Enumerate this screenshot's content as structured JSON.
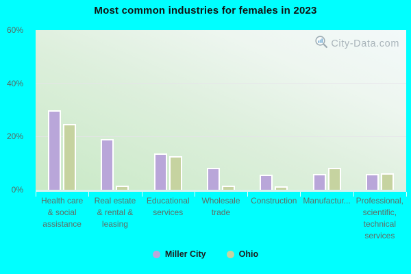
{
  "watermark": {
    "text": "City-Data.com"
  },
  "colors": {
    "background": "#00ffff",
    "plot_gradient_bottom_left": "#c9e9c6",
    "plot_gradient_top_right": "#f3f9fa",
    "axis_line": "#d6f3ee",
    "gridline": "#e6e2ea",
    "title_text": "#111111",
    "axis_text": "#5e6d66",
    "watermark_text": "#a9b4ba"
  },
  "chart_data": {
    "type": "bar",
    "title": "Most common industries for females in 2023",
    "categories": [
      "Health care & social assistance",
      "Real estate & rental & leasing",
      "Educational services",
      "Wholesale trade",
      "Construction",
      "Manufactur...",
      "Professional, scientific, technical services"
    ],
    "tick_labels": [
      "Health care\n& social\nassistance",
      "Real estate\n& rental &\nleasing",
      "Educational\nservices",
      "Wholesale\ntrade",
      "Construction",
      "Manufactur...",
      "Professional,\nscientific,\ntechnical\nservices"
    ],
    "series": [
      {
        "name": "Miller City",
        "color": "#b9a6d9",
        "values": [
          30,
          19,
          13.6,
          8.3,
          5.6,
          5.8,
          5.8
        ]
      },
      {
        "name": "Ohio",
        "color": "#c6d3a0",
        "values": [
          24.6,
          1.6,
          12.6,
          1.5,
          1.4,
          8.2,
          6.3
        ]
      }
    ],
    "ylim": [
      0,
      60
    ],
    "yticks": [
      {
        "value": 0,
        "label": "0%"
      },
      {
        "value": 20,
        "label": "20%"
      },
      {
        "value": 40,
        "label": "40%"
      },
      {
        "value": 60,
        "label": "60%"
      }
    ],
    "grid": "horizontal",
    "legend_position": "bottom"
  }
}
